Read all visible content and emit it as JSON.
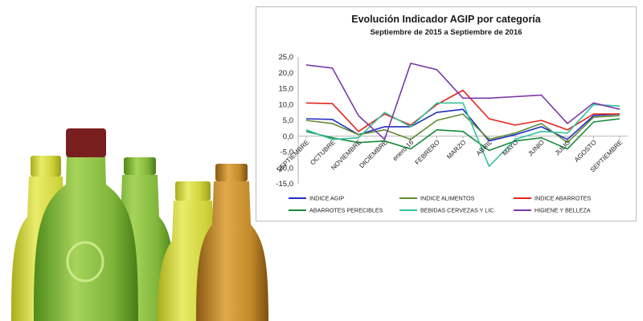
{
  "colors": {
    "bottle_yellow": "#d4d84a",
    "bottle_green": "#8bbf3a",
    "bottle_amber": "#c98d2a",
    "bottle_cap_red": "#7a1f1f"
  },
  "chart_data": {
    "type": "line",
    "title": "Evolución Indicador AGIP por categoría",
    "subtitle": "Septiembre de 2015 a Septiembre de 2016",
    "xlabel": "",
    "ylabel": "",
    "categories": [
      "SEPTIEMBRE",
      "OCTUBRE",
      "NOVIEMBRE",
      "DICIEMBRE",
      "enero-16",
      "FEBRERO",
      "MARZO",
      "ABRIL",
      "MAYO",
      "JUNIO",
      "JULIO",
      "AGOSTO",
      "SEPTIEMBRE"
    ],
    "ylim": [
      -15,
      25
    ],
    "yticks": [
      "25,0",
      "20,0",
      "15,0",
      "10,0",
      "5,0",
      "0,0",
      "-5,0",
      "-10,0",
      "-15,0"
    ],
    "grid": false,
    "legend_position": "bottom",
    "series": [
      {
        "name": "INDICE AGIP",
        "color": "#1f2fbf",
        "values": [
          5.5,
          5.3,
          0.5,
          3.0,
          3.0,
          7.5,
          8.5,
          -1.5,
          0.5,
          3.0,
          -1.0,
          6.5,
          7.0
        ]
      },
      {
        "name": "INDICE ALIMENTOS",
        "color": "#5e8a35",
        "values": [
          5.0,
          4.0,
          0.5,
          2.0,
          -1.0,
          5.0,
          7.0,
          -1.0,
          1.0,
          4.0,
          -2.0,
          6.0,
          6.5
        ]
      },
      {
        "name": "INDICE ABARROTES",
        "color": "#e3251c",
        "values": [
          10.5,
          10.3,
          1.5,
          7.0,
          3.5,
          10.0,
          14.5,
          5.5,
          3.5,
          5.0,
          2.0,
          7.0,
          7.0
        ]
      },
      {
        "name": "ABARROTES PERECIBLES",
        "color": "#1a8a3a",
        "values": [
          1.5,
          -0.5,
          -2.0,
          -1.5,
          -4.0,
          2.0,
          1.5,
          -4.5,
          -1.5,
          -0.5,
          -4.0,
          4.5,
          5.5
        ]
      },
      {
        "name": "BEBIDAS CERVEZAS Y LIC.",
        "color": "#35c4a0",
        "values": [
          2.0,
          -1.0,
          -0.5,
          7.5,
          3.0,
          10.5,
          10.5,
          -9.5,
          -1.0,
          1.5,
          1.0,
          10.0,
          9.5
        ]
      },
      {
        "name": "HIGIENE Y BELLEZA",
        "color": "#7b3aa8",
        "values": [
          22.5,
          21.5,
          6.5,
          -1.0,
          23.0,
          21.0,
          12.0,
          12.0,
          12.5,
          13.0,
          4.0,
          10.5,
          8.5
        ]
      }
    ]
  }
}
